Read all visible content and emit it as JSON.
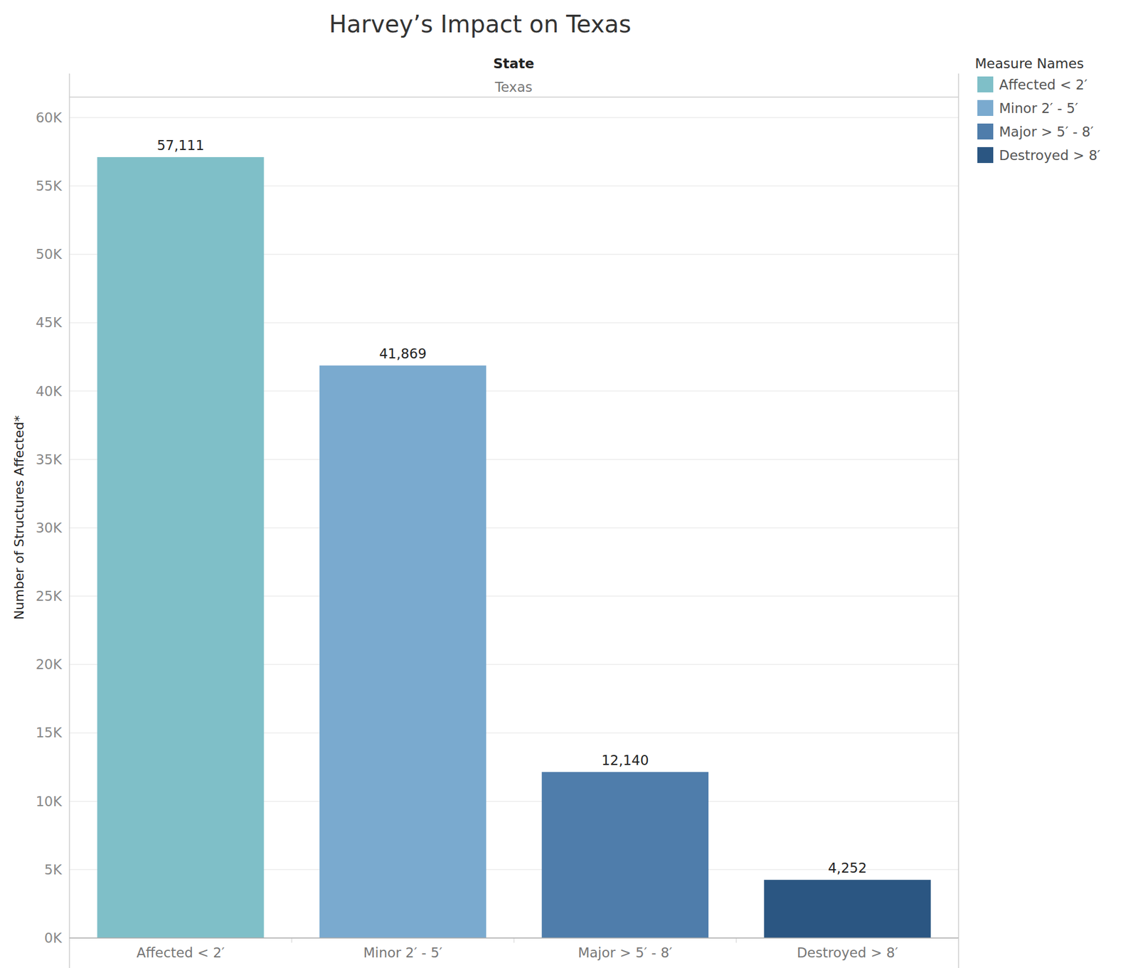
{
  "chart_data": {
    "type": "bar",
    "title": "Harvey’s Impact on Texas",
    "facet_label": "State",
    "facet_value": "Texas",
    "y_label": "Number of Structures Affected*",
    "legend_title": "Measure Names",
    "categories": [
      "Affected < 2′",
      "Minor 2′ - 5′",
      "Major > 5′ - 8′",
      "Destroyed > 8′"
    ],
    "values": [
      57111,
      41869,
      12140,
      4252
    ],
    "value_labels": [
      "57,111",
      "41,869",
      "12,140",
      "4,252"
    ],
    "colors": [
      "#7fbfc8",
      "#7aaacf",
      "#4f7dab",
      "#2b5682"
    ],
    "ylim": [
      0,
      61500
    ],
    "yticks": [
      {
        "value": 0,
        "label": "0K"
      },
      {
        "value": 5000,
        "label": "5K"
      },
      {
        "value": 10000,
        "label": "10K"
      },
      {
        "value": 15000,
        "label": "15K"
      },
      {
        "value": 20000,
        "label": "20K"
      },
      {
        "value": 25000,
        "label": "25K"
      },
      {
        "value": 30000,
        "label": "30K"
      },
      {
        "value": 35000,
        "label": "35K"
      },
      {
        "value": 40000,
        "label": "40K"
      },
      {
        "value": 45000,
        "label": "45K"
      },
      {
        "value": 50000,
        "label": "50K"
      },
      {
        "value": 55000,
        "label": "55K"
      },
      {
        "value": 60000,
        "label": "60K"
      }
    ],
    "grid": true,
    "data_labels": true,
    "legend": "right"
  }
}
